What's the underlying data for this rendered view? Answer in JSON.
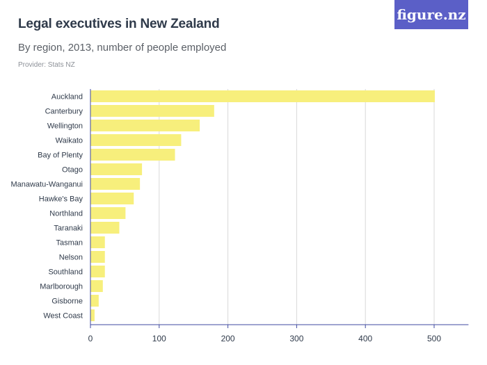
{
  "header": {
    "title": "Legal executives in New Zealand",
    "subtitle": "By region, 2013, number of people employed",
    "provider": "Provider: Stats NZ",
    "logo_text": "figure.nz"
  },
  "colors": {
    "bar": "#f7ef7c",
    "grid": "#d9d9d9",
    "axis": "#3f4aa0",
    "logo_bg": "#5b5fc7"
  },
  "chart_data": {
    "type": "bar",
    "orientation": "horizontal",
    "categories": [
      "Auckland",
      "Canterbury",
      "Wellington",
      "Waikato",
      "Bay of Plenty",
      "Otago",
      "Manawatu-Wanganui",
      "Hawke's Bay",
      "Northland",
      "Taranaki",
      "Tasman",
      "Nelson",
      "Southland",
      "Marlborough",
      "Gisborne",
      "West Coast"
    ],
    "values": [
      501,
      180,
      159,
      132,
      123,
      75,
      72,
      63,
      51,
      42,
      21,
      21,
      21,
      18,
      12,
      6
    ],
    "xlim": [
      0,
      550
    ],
    "xticks": [
      0,
      100,
      200,
      300,
      400,
      500
    ],
    "grid": true
  }
}
